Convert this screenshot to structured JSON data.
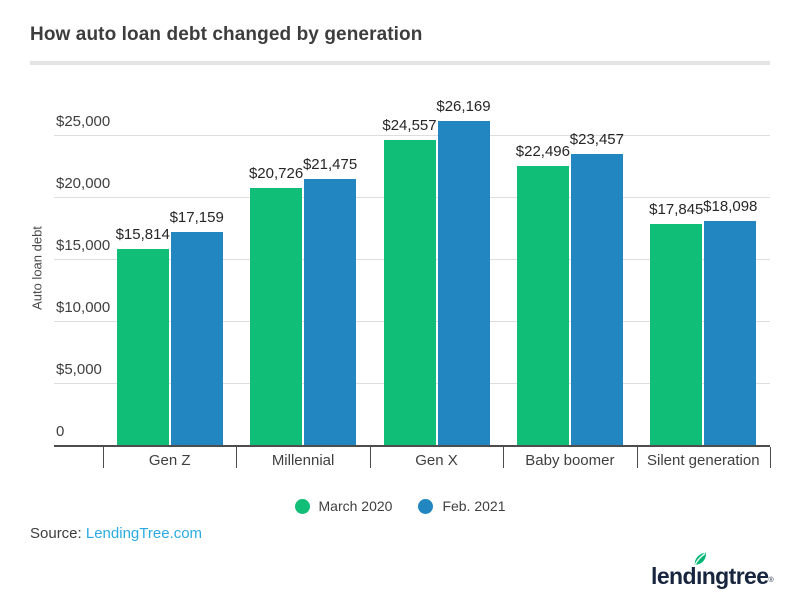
{
  "page": {
    "title": "How auto loan debt changed by generation",
    "source_label": "Source: ",
    "source_link": "LendingTree.com",
    "logo": {
      "text_pre": "lend",
      "text_i": "ı",
      "text_post": "ngtree",
      "trademark": "®"
    }
  },
  "colors": {
    "series_green": "#10be78",
    "series_blue": "#2287c0",
    "link_blue": "#29abe2",
    "axis_dark": "#4d4d4d",
    "gridline": "#dedede",
    "logo_navy": "#18253e",
    "leaf_green": "#00b674"
  },
  "chart_data": {
    "type": "bar",
    "title": "How auto loan debt changed by generation",
    "xlabel": "",
    "ylabel": "Auto loan debt",
    "categories": [
      "Gen Z",
      "Millennial",
      "Gen X",
      "Baby boomer",
      "Silent generation"
    ],
    "series": [
      {
        "name": "March 2020",
        "color": "#10be78",
        "values": [
          15814,
          20726,
          24557,
          22496,
          17845
        ],
        "data_labels": [
          "$15,814",
          "$20,726",
          "$24,557",
          "$22,496",
          "$17,845"
        ]
      },
      {
        "name": "Feb. 2021",
        "color": "#2287c0",
        "values": [
          17159,
          21475,
          26169,
          23457,
          18098
        ],
        "data_labels": [
          "$17,159",
          "$21,475",
          "$26,169",
          "$23,457",
          "$18,098"
        ]
      }
    ],
    "yticks": [
      {
        "value": 0,
        "label": "0"
      },
      {
        "value": 5000,
        "label": "$5,000"
      },
      {
        "value": 10000,
        "label": "$10,000"
      },
      {
        "value": 15000,
        "label": "$15,000"
      },
      {
        "value": 20000,
        "label": "$20,000"
      },
      {
        "value": 25000,
        "label": "$25,000"
      }
    ],
    "ylim": [
      0,
      25000
    ],
    "grid": true,
    "legend_position": "bottom"
  }
}
